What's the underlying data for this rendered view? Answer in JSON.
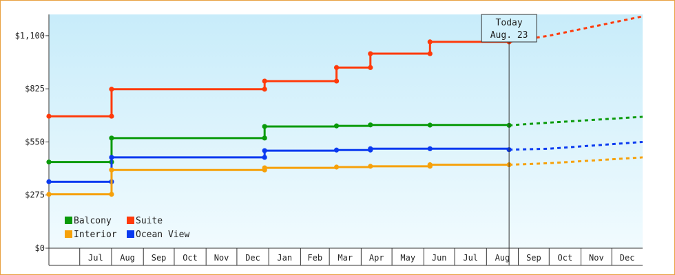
{
  "chart_data": {
    "type": "line",
    "title": "",
    "xlabel": "",
    "ylabel": "",
    "ylim": [
      0,
      1210
    ],
    "x_range": [
      "2022-06-01",
      "2023-12-31"
    ],
    "y_ticks": [
      {
        "value": 0,
        "label": "$0"
      },
      {
        "value": 275,
        "label": "$275"
      },
      {
        "value": 550,
        "label": "$550"
      },
      {
        "value": 825,
        "label": "$825"
      },
      {
        "value": 1100,
        "label": "$1,100"
      }
    ],
    "x_month_labels": [
      "Jul",
      "Aug",
      "Sep",
      "Oct",
      "Nov",
      "Dec",
      "Jan",
      "Feb",
      "Mar",
      "Apr",
      "May",
      "Jun",
      "Jul",
      "Aug",
      "Sep",
      "Oct",
      "Nov",
      "Dec"
    ],
    "x_month_starts": [
      "2022-07-01",
      "2022-08-01",
      "2022-09-01",
      "2022-10-01",
      "2022-11-01",
      "2022-12-01",
      "2023-01-01",
      "2023-02-01",
      "2023-03-01",
      "2023-04-01",
      "2023-05-01",
      "2023-06-01",
      "2023-07-01",
      "2023-08-01",
      "2023-09-01",
      "2023-10-01",
      "2023-11-01",
      "2023-12-01"
    ],
    "today": {
      "date": "2023-08-23",
      "label_line1": "Today",
      "label_line2": "Aug. 23"
    },
    "legend_position": "bottom-left",
    "series": [
      {
        "name": "Suite",
        "color": "#ff3a0a",
        "steps": [
          [
            "2022-06-01",
            683
          ],
          [
            "2022-08-01",
            823
          ],
          [
            "2022-12-28",
            865
          ],
          [
            "2023-03-08",
            935
          ],
          [
            "2023-04-10",
            1007
          ],
          [
            "2023-06-07",
            1068
          ]
        ],
        "markers": [
          [
            "2022-06-01",
            683
          ],
          [
            "2022-08-01",
            683
          ],
          [
            "2022-08-01",
            823
          ],
          [
            "2022-12-28",
            823
          ],
          [
            "2022-12-28",
            865
          ],
          [
            "2023-03-08",
            865
          ],
          [
            "2023-03-08",
            935
          ],
          [
            "2023-04-10",
            935
          ],
          [
            "2023-04-10",
            1007
          ],
          [
            "2023-06-07",
            1007
          ],
          [
            "2023-06-07",
            1068
          ],
          [
            "2023-08-23",
            1068
          ]
        ],
        "forecast": [
          [
            "2023-08-23",
            1068
          ],
          [
            "2023-10-01",
            1100
          ],
          [
            "2023-12-31",
            1200
          ]
        ]
      },
      {
        "name": "Balcony",
        "color": "#0a9a0a",
        "steps": [
          [
            "2022-06-01",
            446
          ],
          [
            "2022-08-01",
            570
          ],
          [
            "2022-12-28",
            630
          ],
          [
            "2023-03-08",
            633
          ],
          [
            "2023-04-10",
            638
          ]
        ],
        "markers": [
          [
            "2022-06-01",
            446
          ],
          [
            "2022-08-01",
            446
          ],
          [
            "2022-08-01",
            570
          ],
          [
            "2022-12-28",
            570
          ],
          [
            "2022-12-28",
            630
          ],
          [
            "2023-03-08",
            633
          ],
          [
            "2023-04-10",
            638
          ],
          [
            "2023-06-07",
            637
          ],
          [
            "2023-08-23",
            636
          ]
        ],
        "forecast": [
          [
            "2023-08-23",
            636
          ],
          [
            "2023-10-01",
            650
          ],
          [
            "2023-12-31",
            680
          ]
        ]
      },
      {
        "name": "Ocean View",
        "color": "#0a3af0",
        "steps": [
          [
            "2022-06-01",
            344
          ],
          [
            "2022-08-01",
            470
          ],
          [
            "2022-12-28",
            505
          ],
          [
            "2023-03-08",
            508
          ],
          [
            "2023-04-10",
            515
          ]
        ],
        "markers": [
          [
            "2022-06-01",
            344
          ],
          [
            "2022-08-01",
            344
          ],
          [
            "2022-08-01",
            470
          ],
          [
            "2022-12-28",
            470
          ],
          [
            "2022-12-28",
            505
          ],
          [
            "2023-03-08",
            508
          ],
          [
            "2023-04-10",
            508
          ],
          [
            "2023-04-10",
            515
          ],
          [
            "2023-06-07",
            515
          ],
          [
            "2023-08-23",
            510
          ]
        ],
        "forecast": [
          [
            "2023-08-23",
            510
          ],
          [
            "2023-10-01",
            515
          ],
          [
            "2023-12-31",
            550
          ]
        ]
      },
      {
        "name": "Interior",
        "color": "#f6a10a",
        "steps": [
          [
            "2022-06-01",
            279
          ],
          [
            "2022-08-01",
            405
          ],
          [
            "2022-12-28",
            416
          ],
          [
            "2023-03-08",
            420
          ],
          [
            "2023-04-10",
            424
          ],
          [
            "2023-06-07",
            432
          ]
        ],
        "markers": [
          [
            "2022-06-01",
            279
          ],
          [
            "2022-08-01",
            279
          ],
          [
            "2022-08-01",
            405
          ],
          [
            "2022-12-28",
            405
          ],
          [
            "2022-12-28",
            416
          ],
          [
            "2023-03-08",
            420
          ],
          [
            "2023-04-10",
            424
          ],
          [
            "2023-06-07",
            424
          ],
          [
            "2023-06-07",
            432
          ],
          [
            "2023-08-23",
            432
          ]
        ],
        "forecast": [
          [
            "2023-08-23",
            432
          ],
          [
            "2023-10-01",
            440
          ],
          [
            "2023-12-31",
            470
          ]
        ]
      }
    ],
    "legend": [
      {
        "name": "Balcony",
        "color": "#0a9a0a"
      },
      {
        "name": "Suite",
        "color": "#ff3a0a"
      },
      {
        "name": "Interior",
        "color": "#f6a10a"
      },
      {
        "name": "Ocean View",
        "color": "#0a3af0"
      }
    ]
  }
}
